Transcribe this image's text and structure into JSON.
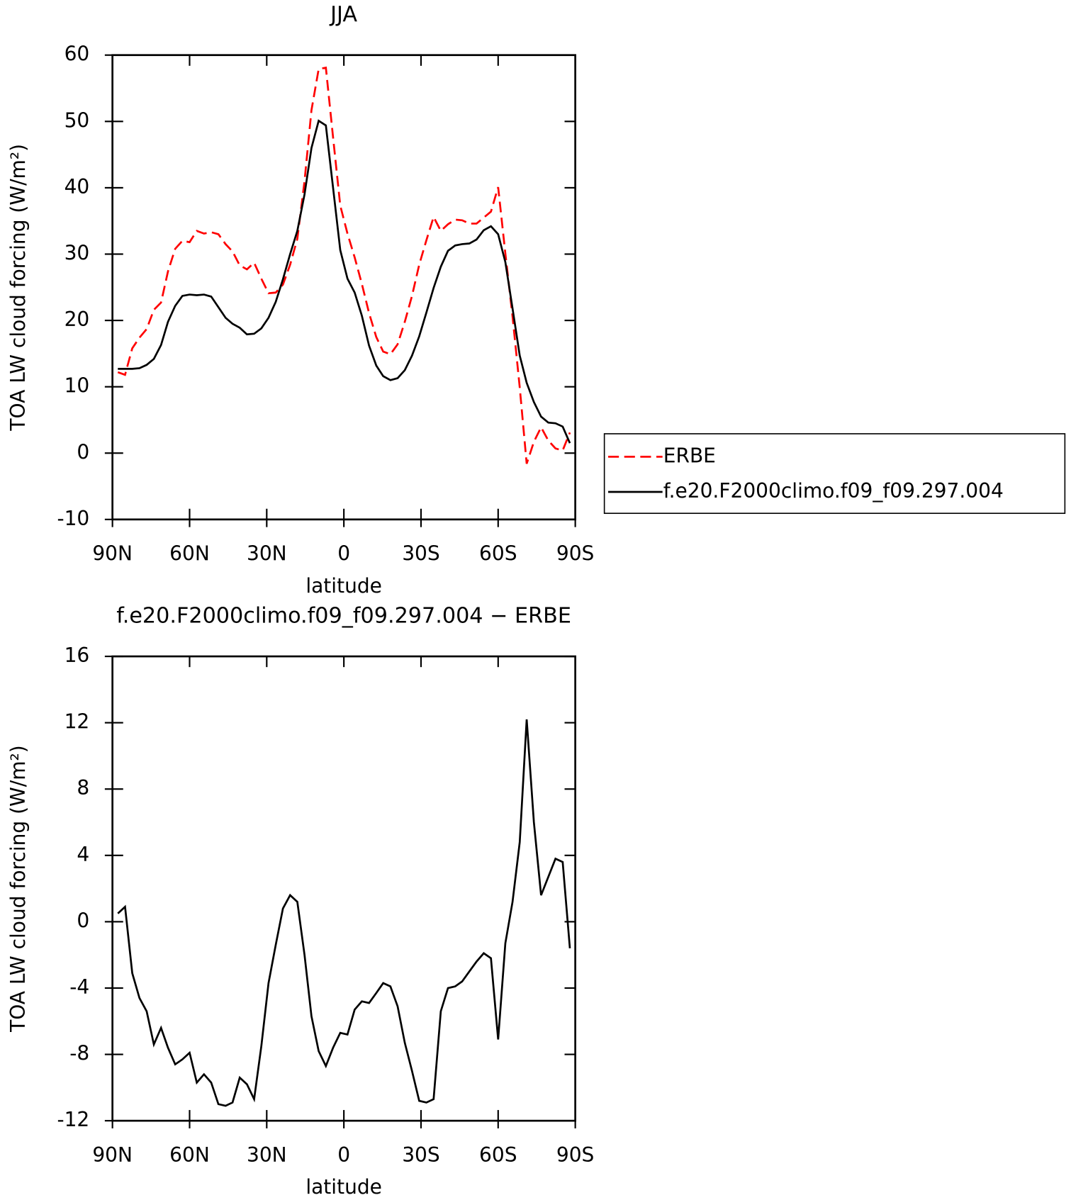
{
  "chart_data": [
    {
      "type": "line",
      "title": "JJA",
      "xlabel": "latitude",
      "ylabel": "TOA LW cloud forcing (W/m²)",
      "x": [
        87.9,
        85.1,
        82.3,
        79.5,
        76.7,
        73.9,
        71.1,
        68.4,
        65.6,
        62.8,
        60.0,
        57.2,
        54.4,
        51.6,
        48.8,
        46.0,
        43.3,
        40.5,
        37.7,
        34.9,
        32.1,
        29.3,
        26.5,
        23.7,
        20.9,
        18.1,
        15.3,
        12.6,
        9.8,
        7.0,
        4.2,
        1.4,
        -1.4,
        -4.2,
        -7.0,
        -9.8,
        -12.6,
        -15.3,
        -18.1,
        -20.9,
        -23.7,
        -26.5,
        -29.3,
        -32.1,
        -34.9,
        -37.7,
        -40.5,
        -43.3,
        -46.0,
        -48.8,
        -51.6,
        -54.4,
        -57.2,
        -60.0,
        -62.8,
        -65.6,
        -68.4,
        -71.1,
        -73.9,
        -76.7,
        -79.5,
        -82.3,
        -85.1,
        -87.9
      ],
      "series": [
        {
          "name": "ERBE",
          "color": "#ff0000",
          "dashed": true,
          "values": [
            12.2,
            11.8,
            15.8,
            17.4,
            18.7,
            21.6,
            22.7,
            27.4,
            30.8,
            32.0,
            31.8,
            33.5,
            33.1,
            33.3,
            33.0,
            31.5,
            30.4,
            28.3,
            27.7,
            28.7,
            26.3,
            24.1,
            24.2,
            25.4,
            28.4,
            32.3,
            41.0,
            51.7,
            57.9,
            58.1,
            47.6,
            37.3,
            33.1,
            29.5,
            25.5,
            21.1,
            17.5,
            15.3,
            14.9,
            16.4,
            19.8,
            23.7,
            28.4,
            32.1,
            35.6,
            33.5,
            34.5,
            35.2,
            35.1,
            34.6,
            34.6,
            35.5,
            36.4,
            40.1,
            30.1,
            20.6,
            9.9,
            -1.6,
            1.7,
            3.9,
            1.9,
            0.7,
            0.4,
            3.1
          ]
        },
        {
          "name": "f.e20.F2000climo.f09_f09.297.004",
          "color": "#000000",
          "dashed": false,
          "values": [
            12.7,
            12.7,
            12.7,
            12.8,
            13.3,
            14.2,
            16.3,
            19.8,
            22.2,
            23.7,
            23.9,
            23.8,
            23.9,
            23.6,
            22.0,
            20.4,
            19.5,
            18.9,
            17.9,
            18.0,
            18.8,
            20.4,
            22.8,
            26.2,
            30.0,
            33.5,
            39.0,
            46.0,
            50.1,
            49.4,
            40.0,
            30.6,
            26.3,
            24.2,
            20.7,
            16.2,
            13.2,
            11.6,
            11.0,
            11.3,
            12.5,
            14.7,
            17.6,
            21.2,
            24.9,
            28.1,
            30.5,
            31.3,
            31.5,
            31.6,
            32.2,
            33.6,
            34.2,
            33.0,
            28.8,
            21.8,
            14.7,
            10.6,
            7.7,
            5.5,
            4.6,
            4.5,
            4.0,
            1.5
          ]
        }
      ],
      "xlim": [
        90,
        -90
      ],
      "xticks": [
        {
          "value": 90,
          "label": "90N"
        },
        {
          "value": 60,
          "label": "60N"
        },
        {
          "value": 30,
          "label": "30N"
        },
        0,
        {
          "value": -30,
          "label": "30S"
        },
        {
          "value": -60,
          "label": "60S"
        },
        {
          "value": -90,
          "label": "90S"
        }
      ],
      "ylim": [
        -10,
        60
      ],
      "yticks": [
        60,
        50,
        40,
        30,
        20,
        10,
        0,
        -10
      ],
      "legend": "outside-right"
    },
    {
      "type": "line",
      "title": "f.e20.F2000climo.f09_f09.297.004 − ERBE",
      "xlabel": "latitude",
      "ylabel": "TOA LW cloud forcing (W/m²)",
      "x": [
        87.9,
        85.1,
        82.3,
        79.5,
        76.7,
        73.9,
        71.1,
        68.4,
        65.6,
        62.8,
        60.0,
        57.2,
        54.4,
        51.6,
        48.8,
        46.0,
        43.3,
        40.5,
        37.7,
        34.9,
        32.1,
        29.3,
        26.5,
        23.7,
        20.9,
        18.1,
        15.3,
        12.6,
        9.8,
        7.0,
        4.2,
        1.4,
        -1.4,
        -4.2,
        -7.0,
        -9.8,
        -12.6,
        -15.3,
        -18.1,
        -20.9,
        -23.7,
        -26.5,
        -29.3,
        -32.1,
        -34.9,
        -37.7,
        -40.5,
        -43.3,
        -46.0,
        -48.8,
        -51.6,
        -54.4,
        -57.2,
        -60.0,
        -62.8,
        -65.6,
        -68.4,
        -71.1,
        -73.9,
        -76.7,
        -79.5,
        -82.3,
        -85.1,
        -87.9
      ],
      "series": [
        {
          "color": "#000000",
          "dashed": false,
          "values": [
            0.5,
            0.9,
            -3.1,
            -4.6,
            -5.4,
            -7.4,
            -6.4,
            -7.6,
            -8.6,
            -8.3,
            -7.9,
            -9.7,
            -9.2,
            -9.7,
            -11.0,
            -11.1,
            -10.9,
            -9.4,
            -9.8,
            -10.7,
            -7.5,
            -3.7,
            -1.4,
            0.8,
            1.6,
            1.2,
            -2.0,
            -5.7,
            -7.8,
            -8.7,
            -7.6,
            -6.7,
            -6.8,
            -5.3,
            -4.8,
            -4.9,
            -4.3,
            -3.7,
            -3.9,
            -5.1,
            -7.3,
            -9.0,
            -10.8,
            -10.9,
            -10.7,
            -5.4,
            -4.0,
            -3.9,
            -3.6,
            -3.0,
            -2.4,
            -1.9,
            -2.2,
            -7.1,
            -1.3,
            1.2,
            4.8,
            12.2,
            6.0,
            1.6,
            2.7,
            3.8,
            3.6,
            -1.6
          ]
        }
      ],
      "xlim": [
        90,
        -90
      ],
      "xticks": [
        {
          "value": 90,
          "label": "90N"
        },
        {
          "value": 60,
          "label": "60N"
        },
        {
          "value": 30,
          "label": "30N"
        },
        0,
        {
          "value": -30,
          "label": "30S"
        },
        {
          "value": -60,
          "label": "60S"
        },
        {
          "value": -90,
          "label": "90S"
        }
      ],
      "ylim": [
        -12,
        16
      ],
      "yticks": [
        16,
        12,
        8,
        4,
        0,
        -4,
        -8,
        -12
      ]
    }
  ]
}
